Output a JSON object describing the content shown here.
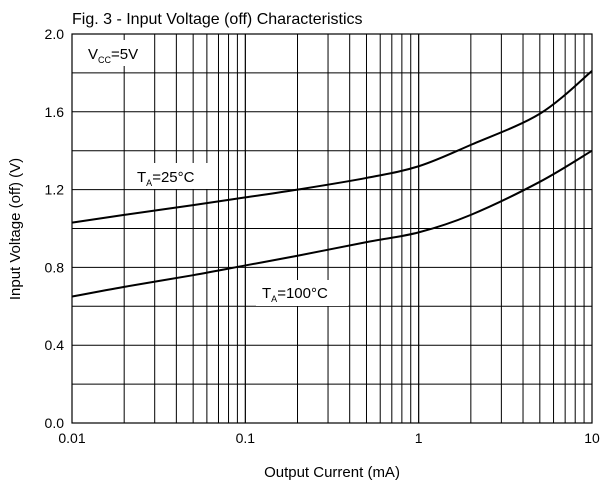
{
  "chart_data": {
    "type": "line",
    "title": "Fig. 3 - Input Voltage (off) Characteristics",
    "xlabel": "Output Current (mA)",
    "ylabel": "Input Voltage (off) (V)",
    "xscale": "log",
    "xlim": [
      0.01,
      10
    ],
    "ylim": [
      0.0,
      2.0
    ],
    "x_ticks": [
      0.01,
      0.1,
      1,
      10
    ],
    "x_tick_labels": [
      "0.01",
      "0.1",
      "1",
      "10"
    ],
    "y_ticks": [
      0.0,
      0.4,
      0.8,
      1.2,
      1.6,
      2.0
    ],
    "y_tick_labels": [
      "0.0",
      "0.4",
      "0.8",
      "1.2",
      "1.6",
      "2.0"
    ],
    "grid": true,
    "annotations": {
      "condition": {
        "main": "V",
        "sub": "CC",
        "rest": "=5V"
      },
      "series_25": {
        "main": "T",
        "sub": "A",
        "rest": "=25°C"
      },
      "series_100": {
        "main": "T",
        "sub": "A",
        "rest": "=100°C"
      }
    },
    "series": [
      {
        "name": "TA=25°C",
        "x": [
          0.01,
          0.02,
          0.05,
          0.1,
          0.2,
          0.5,
          1,
          2,
          5,
          10
        ],
        "y": [
          1.03,
          1.07,
          1.12,
          1.16,
          1.2,
          1.26,
          1.32,
          1.43,
          1.59,
          1.81
        ]
      },
      {
        "name": "TA=100°C",
        "x": [
          0.01,
          0.02,
          0.05,
          0.1,
          0.2,
          0.5,
          1,
          2,
          5,
          10
        ],
        "y": [
          0.65,
          0.7,
          0.76,
          0.81,
          0.86,
          0.93,
          0.98,
          1.07,
          1.24,
          1.4
        ]
      }
    ]
  }
}
